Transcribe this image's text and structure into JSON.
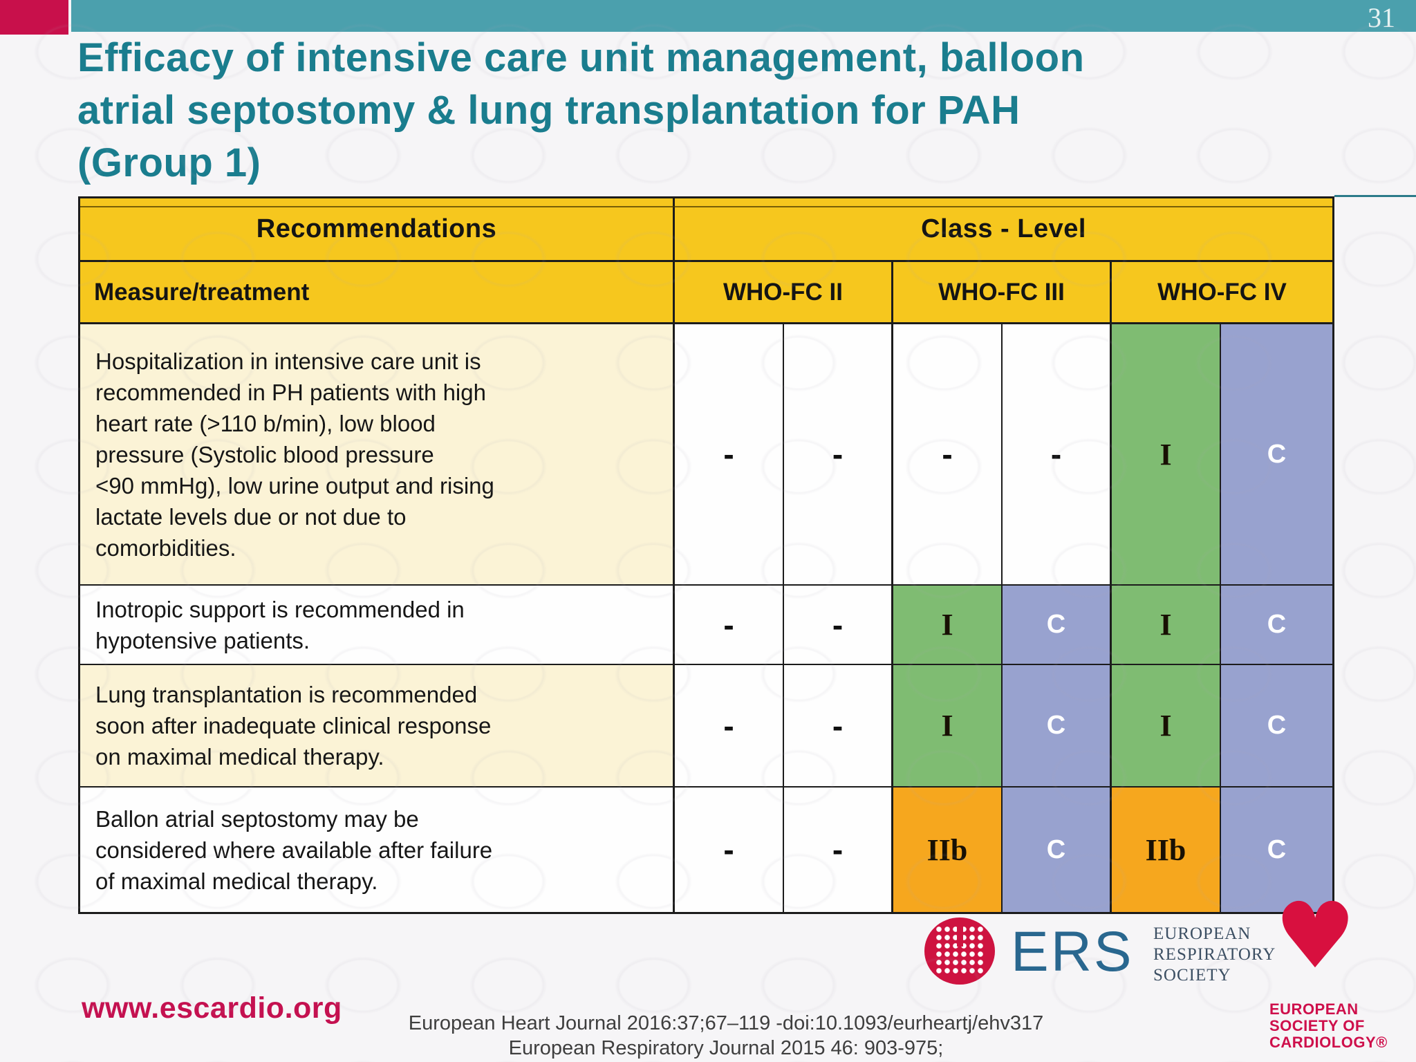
{
  "page": {
    "number": "31"
  },
  "title": "Efficacy of intensive care unit management, balloon\natrial septostomy & lung transplantation for PAH\n(Group 1)",
  "table": {
    "header": {
      "recommendations": "Recommendations",
      "class_level": "Class - Level",
      "measure": "Measure/treatment",
      "who_fc_2": "WHO-FC II",
      "who_fc_3": "WHO-FC III",
      "who_fc_4": "WHO-FC IV"
    },
    "rows": [
      {
        "text": "Hospitalization in intensive care unit is\nrecommended in PH patients with high\nheart rate (>110 b/min), low blood\npressure (Systolic blood pressure\n<90 mmHg), low urine output and rising\nlactate levels due or not due to\ncomorbidities.",
        "cells": [
          {
            "label": "-",
            "style": "blank"
          },
          {
            "label": "-",
            "style": "blank"
          },
          {
            "label": "-",
            "style": "blank"
          },
          {
            "label": "-",
            "style": "blank"
          },
          {
            "label": "I",
            "style": "class-green"
          },
          {
            "label": "C",
            "style": "level-blue"
          }
        ]
      },
      {
        "text": "Inotropic support is recommended in\nhypotensive patients.",
        "cells": [
          {
            "label": "-",
            "style": "blank"
          },
          {
            "label": "-",
            "style": "blank"
          },
          {
            "label": "I",
            "style": "class-green"
          },
          {
            "label": "C",
            "style": "level-blue"
          },
          {
            "label": "I",
            "style": "class-green"
          },
          {
            "label": "C",
            "style": "level-blue"
          }
        ]
      },
      {
        "text": "Lung transplantation is recommended\nsoon after inadequate clinical response\non maximal medical therapy.",
        "cells": [
          {
            "label": "-",
            "style": "blank"
          },
          {
            "label": "-",
            "style": "blank"
          },
          {
            "label": "I",
            "style": "class-green"
          },
          {
            "label": "C",
            "style": "level-blue"
          },
          {
            "label": "I",
            "style": "class-green"
          },
          {
            "label": "C",
            "style": "level-blue"
          }
        ]
      },
      {
        "text": "Ballon atrial septostomy may be\nconsidered where available after failure\nof maximal medical therapy.",
        "cells": [
          {
            "label": "-",
            "style": "blank"
          },
          {
            "label": "-",
            "style": "blank"
          },
          {
            "label": "IIb",
            "style": "class-orange"
          },
          {
            "label": "C",
            "style": "level-blue"
          },
          {
            "label": "IIb",
            "style": "class-orange"
          },
          {
            "label": "C",
            "style": "level-blue"
          }
        ]
      }
    ]
  },
  "footer": {
    "website": "www.escardio.org",
    "citation_line1": "European Heart Journal 2016:37;67–119 -doi:10.1093/eurheartj/ehv317",
    "citation_line2": "European Respiratory Journal 2015 46: 903-975;",
    "ers_abbr": "ERS",
    "ers_name": "EUROPEAN\nRESPIRATORY\nSOCIETY",
    "esc_heart_glyph": "♥",
    "esc_name": "EUROPEAN\nSOCIETY OF\nCARDIOLOGY®"
  },
  "colors": {
    "topbar_teal": "#4ba0ad",
    "corner_red": "#c8104b",
    "title_teal": "#1a7d8e",
    "header_yellow": "#f6c71e",
    "row_cream": "#fbf3d6",
    "class_i_green": "#7fbc72",
    "level_c_blue": "#98a2cf",
    "class_iib_orange": "#f6a71e",
    "website_red": "#c41150",
    "ers_blue": "#29678f",
    "esc_red": "#d8103f"
  }
}
